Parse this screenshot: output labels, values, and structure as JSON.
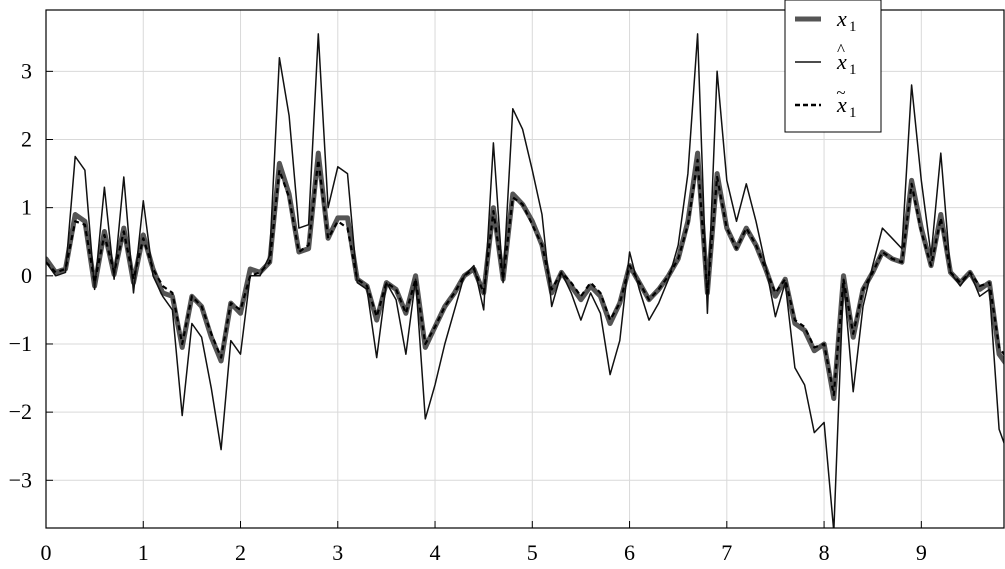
{
  "chart_data": {
    "type": "line",
    "title": "",
    "xlabel": "",
    "ylabel": "",
    "xlim": [
      0,
      9.85
    ],
    "ylim": [
      -3.7,
      3.9
    ],
    "xticks": [
      0,
      1,
      2,
      3,
      4,
      5,
      6,
      7,
      8,
      9
    ],
    "yticks": [
      -3,
      -2,
      -1,
      0,
      1,
      2,
      3
    ],
    "xtick_labels": [
      "0",
      "1",
      "2",
      "3",
      "4",
      "5",
      "6",
      "7",
      "8",
      "9"
    ],
    "ytick_labels": [
      "−3",
      "−2",
      "−1",
      "0",
      "1",
      "2",
      "3"
    ],
    "grid": true,
    "legend_position": "top-right",
    "x": [
      0,
      0.1,
      0.2,
      0.3,
      0.4,
      0.5,
      0.6,
      0.7,
      0.8,
      0.9,
      1.0,
      1.1,
      1.2,
      1.3,
      1.4,
      1.5,
      1.6,
      1.7,
      1.8,
      1.9,
      2.0,
      2.1,
      2.2,
      2.3,
      2.4,
      2.5,
      2.6,
      2.7,
      2.8,
      2.9,
      3.0,
      3.1,
      3.2,
      3.3,
      3.4,
      3.5,
      3.6,
      3.7,
      3.8,
      3.9,
      4.0,
      4.1,
      4.2,
      4.3,
      4.4,
      4.5,
      4.6,
      4.7,
      4.8,
      4.9,
      5.0,
      5.1,
      5.2,
      5.3,
      5.4,
      5.5,
      5.6,
      5.7,
      5.8,
      5.9,
      6.0,
      6.1,
      6.2,
      6.3,
      6.4,
      6.5,
      6.6,
      6.7,
      6.8,
      6.9,
      7.0,
      7.1,
      7.2,
      7.3,
      7.4,
      7.5,
      7.6,
      7.7,
      7.8,
      7.9,
      8.0,
      8.1,
      8.2,
      8.3,
      8.4,
      8.5,
      8.6,
      8.7,
      8.8,
      8.9,
      9.0,
      9.1,
      9.2,
      9.3,
      9.4,
      9.5,
      9.6,
      9.7,
      9.8,
      9.9
    ],
    "series": [
      {
        "name": "x1",
        "legend_base": "x",
        "legend_sub": "1",
        "legend_accent": "",
        "color": "#555555",
        "style": "thick",
        "values": [
          0.25,
          0.05,
          0.1,
          0.9,
          0.8,
          -0.15,
          0.65,
          0.02,
          0.7,
          -0.1,
          0.6,
          0.1,
          -0.25,
          -0.3,
          -1.05,
          -0.3,
          -0.45,
          -0.9,
          -1.25,
          -0.4,
          -0.55,
          0.1,
          0.05,
          0.2,
          1.65,
          1.2,
          0.35,
          0.4,
          1.8,
          0.55,
          0.85,
          0.85,
          -0.05,
          -0.15,
          -0.65,
          -0.1,
          -0.2,
          -0.55,
          0.0,
          -1.05,
          -0.75,
          -0.45,
          -0.25,
          0.0,
          0.1,
          -0.25,
          1.0,
          -0.05,
          1.2,
          1.05,
          0.8,
          0.45,
          -0.25,
          0.05,
          -0.15,
          -0.35,
          -0.15,
          -0.3,
          -0.7,
          -0.4,
          0.15,
          -0.1,
          -0.35,
          -0.2,
          0.0,
          0.25,
          0.8,
          1.8,
          -0.25,
          1.5,
          0.7,
          0.4,
          0.7,
          0.45,
          0.1,
          -0.3,
          -0.05,
          -0.7,
          -0.8,
          -1.1,
          -1.0,
          -1.8,
          0.0,
          -0.9,
          -0.2,
          0.05,
          0.35,
          0.25,
          0.2,
          1.4,
          0.7,
          0.15,
          0.9,
          0.05,
          -0.1,
          0.05,
          -0.2,
          -0.1,
          -1.15,
          -1.35
        ]
      },
      {
        "name": "x̂1",
        "legend_base": "x",
        "legend_sub": "1",
        "legend_accent": "^",
        "color": "#111111",
        "style": "thin",
        "values": [
          0.2,
          0.0,
          0.05,
          1.75,
          1.55,
          -0.2,
          1.3,
          -0.05,
          1.45,
          -0.25,
          1.1,
          0.0,
          -0.3,
          -0.5,
          -2.05,
          -0.7,
          -0.9,
          -1.65,
          -2.55,
          -0.95,
          -1.15,
          0.0,
          0.0,
          0.3,
          3.2,
          2.35,
          0.7,
          0.75,
          3.55,
          1.0,
          1.6,
          1.5,
          -0.1,
          -0.2,
          -1.2,
          -0.1,
          -0.35,
          -1.15,
          -0.05,
          -2.1,
          -1.6,
          -1.0,
          -0.5,
          0.0,
          0.15,
          -0.5,
          1.95,
          -0.1,
          2.45,
          2.15,
          1.55,
          0.9,
          -0.45,
          0.05,
          -0.25,
          -0.65,
          -0.25,
          -0.55,
          -1.45,
          -0.95,
          0.35,
          -0.2,
          -0.65,
          -0.4,
          -0.05,
          0.45,
          1.5,
          3.55,
          -0.55,
          3.0,
          1.4,
          0.8,
          1.35,
          0.8,
          0.15,
          -0.6,
          -0.1,
          -1.35,
          -1.6,
          -2.3,
          -2.15,
          -3.75,
          -0.05,
          -1.7,
          -0.45,
          0.15,
          0.7,
          0.55,
          0.4,
          2.8,
          1.4,
          0.3,
          1.8,
          0.05,
          -0.15,
          0.05,
          -0.3,
          -0.2,
          -2.25,
          -2.65
        ]
      },
      {
        "name": "x̃1",
        "legend_base": "x",
        "legend_sub": "1",
        "legend_accent": "~",
        "color": "#000000",
        "style": "dashed",
        "values": [
          0.2,
          0.05,
          0.1,
          0.8,
          0.75,
          -0.1,
          0.6,
          0.05,
          0.65,
          -0.05,
          0.55,
          0.1,
          -0.15,
          -0.25,
          -1.0,
          -0.3,
          -0.45,
          -0.85,
          -1.2,
          -0.4,
          -0.5,
          0.0,
          0.05,
          0.2,
          1.55,
          1.15,
          0.35,
          0.45,
          1.7,
          0.55,
          0.8,
          0.7,
          -0.05,
          -0.15,
          -0.6,
          -0.1,
          -0.2,
          -0.55,
          -0.05,
          -1.0,
          -0.75,
          -0.45,
          -0.25,
          0.0,
          0.1,
          -0.25,
          0.95,
          -0.05,
          1.15,
          1.05,
          0.75,
          0.45,
          -0.2,
          0.05,
          -0.1,
          -0.3,
          -0.1,
          -0.25,
          -0.65,
          -0.4,
          0.15,
          -0.1,
          -0.35,
          -0.2,
          0.0,
          0.25,
          0.75,
          1.7,
          -0.25,
          1.45,
          0.7,
          0.4,
          0.7,
          0.45,
          0.1,
          -0.25,
          -0.05,
          -0.65,
          -0.75,
          -1.05,
          -1.0,
          -1.75,
          -0.05,
          -0.85,
          -0.2,
          0.05,
          0.35,
          0.25,
          0.2,
          1.35,
          0.65,
          0.15,
          0.85,
          0.05,
          -0.1,
          0.05,
          -0.15,
          -0.1,
          -1.05,
          -1.25
        ]
      }
    ]
  }
}
